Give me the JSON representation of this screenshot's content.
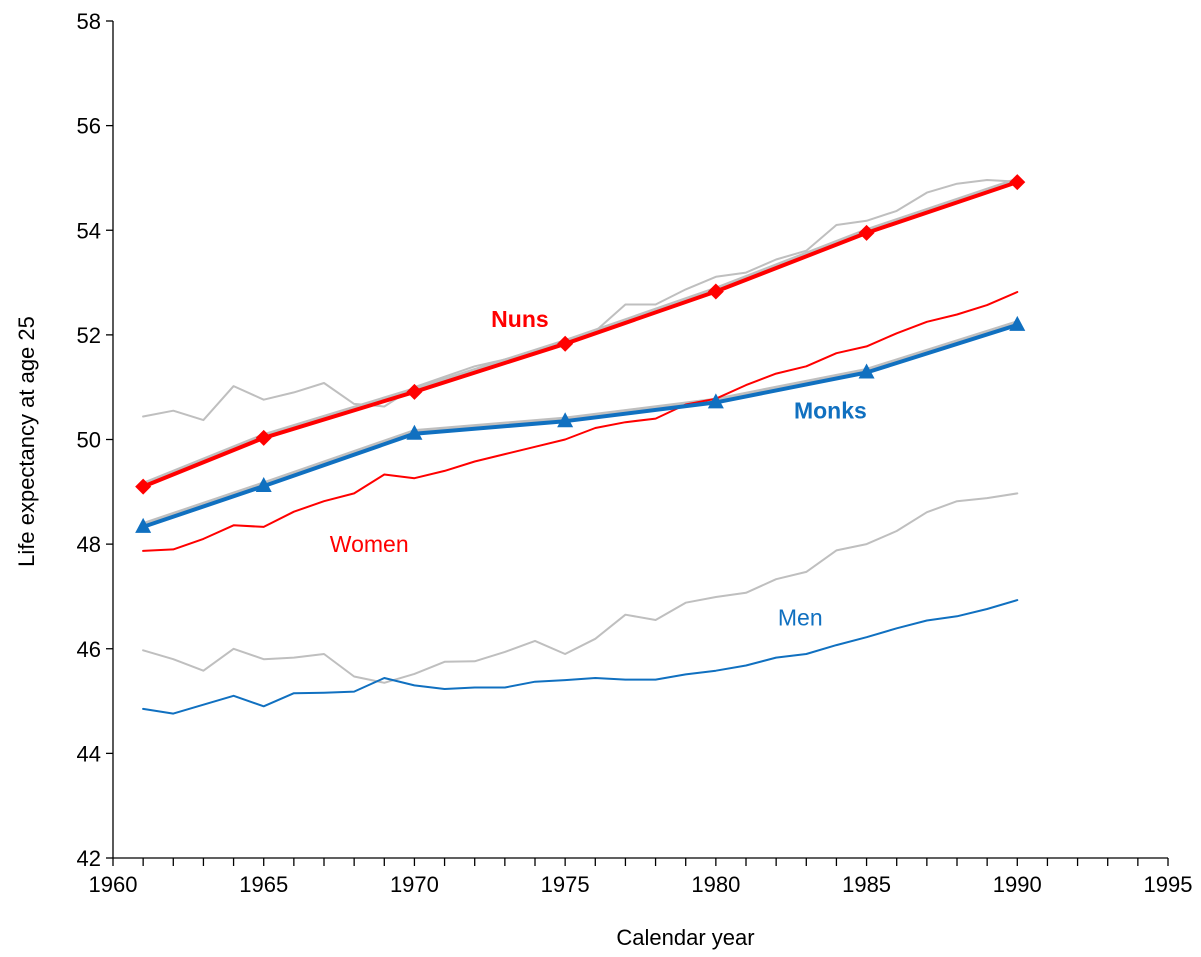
{
  "chart_data": {
    "type": "line",
    "title": "",
    "xlabel": "Calendar year",
    "ylabel": "Life expectancy at age 25",
    "xlim": [
      1960,
      1995
    ],
    "ylim": [
      42,
      58
    ],
    "x_ticks": [
      1960,
      1965,
      1970,
      1975,
      1980,
      1985,
      1990,
      1995
    ],
    "y_ticks": [
      42,
      44,
      46,
      48,
      50,
      52,
      54,
      56,
      58
    ],
    "x_tick_labels": [
      "1960",
      "1965",
      "1970",
      "1975",
      "1980",
      "1985",
      "1990",
      "1995"
    ],
    "y_tick_labels": [
      "42",
      "44",
      "46",
      "48",
      "50",
      "52",
      "54",
      "56",
      "58"
    ],
    "grid": false,
    "legend": "none",
    "colors": {
      "red": "#ff0000",
      "blue": "#1070c0",
      "gray": "#bfbfbf"
    },
    "series": [
      {
        "name": "Women",
        "color": "#ff0000",
        "x": [
          1961,
          1962,
          1963,
          1964,
          1965,
          1966,
          1967,
          1968,
          1969,
          1970,
          1971,
          1972,
          1973,
          1974,
          1975,
          1976,
          1977,
          1978,
          1979,
          1980,
          1981,
          1982,
          1983,
          1984,
          1985,
          1986,
          1987,
          1988,
          1989,
          1990
        ],
        "y": [
          47.87,
          47.9,
          48.1,
          48.36,
          48.33,
          48.62,
          48.82,
          48.97,
          49.33,
          49.26,
          49.4,
          49.58,
          49.72,
          49.86,
          50.0,
          50.22,
          50.33,
          50.4,
          50.67,
          50.78,
          51.04,
          51.26,
          51.4,
          51.65,
          51.78,
          52.03,
          52.25,
          52.39,
          52.57,
          52.82
        ]
      },
      {
        "name": "Men",
        "color": "#1070c0",
        "x": [
          1961,
          1962,
          1963,
          1964,
          1965,
          1966,
          1967,
          1968,
          1969,
          1970,
          1971,
          1972,
          1973,
          1974,
          1975,
          1976,
          1977,
          1978,
          1979,
          1980,
          1981,
          1982,
          1983,
          1984,
          1985,
          1986,
          1987,
          1988,
          1989,
          1990
        ],
        "y": [
          44.85,
          44.76,
          44.93,
          45.1,
          44.9,
          45.15,
          45.16,
          45.18,
          45.44,
          45.3,
          45.23,
          45.26,
          45.26,
          45.37,
          45.4,
          45.44,
          45.41,
          45.41,
          45.51,
          45.58,
          45.68,
          45.83,
          45.9,
          46.07,
          46.22,
          46.39,
          46.54,
          46.62,
          46.76,
          46.93
        ]
      },
      {
        "name": "Nuns",
        "color": "#ff0000",
        "marker": "diamond",
        "x": [
          1961,
          1965,
          1970,
          1975,
          1980,
          1985,
          1990
        ],
        "y": [
          49.1,
          50.03,
          50.91,
          51.83,
          52.83,
          53.95,
          54.92
        ]
      },
      {
        "name": "Monks",
        "color": "#1070c0",
        "marker": "triangle",
        "x": [
          1961,
          1965,
          1970,
          1975,
          1980,
          1985,
          1990
        ],
        "y": [
          48.33,
          49.11,
          50.11,
          50.35,
          50.71,
          51.28,
          52.19
        ]
      },
      {
        "color": "#bfbfbf",
        "x": [
          1961,
          1962,
          1963,
          1964,
          1965,
          1966,
          1967,
          1968,
          1969,
          1970,
          1971,
          1972,
          1973,
          1974,
          1975,
          1976,
          1977,
          1978,
          1979,
          1980,
          1981,
          1982,
          1983,
          1984,
          1985,
          1986,
          1987,
          1988,
          1989,
          1990
        ],
        "y": [
          50.44,
          50.55,
          50.37,
          51.02,
          50.76,
          50.9,
          51.08,
          50.68,
          50.63,
          51.0,
          51.2,
          51.4,
          51.53,
          51.67,
          51.9,
          52.07,
          52.58,
          52.58,
          52.87,
          53.11,
          53.19,
          53.44,
          53.61,
          54.1,
          54.18,
          54.37,
          54.72,
          54.89,
          54.96,
          54.93
        ]
      },
      {
        "color": "#bfbfbf",
        "x": [
          1961,
          1962,
          1963,
          1964,
          1965,
          1966,
          1967,
          1968,
          1969,
          1970,
          1971,
          1972,
          1973,
          1974,
          1975,
          1976,
          1977,
          1978,
          1979,
          1980,
          1981,
          1982,
          1983,
          1984,
          1985,
          1986,
          1987,
          1988,
          1989,
          1990
        ],
        "y": [
          45.97,
          45.8,
          45.58,
          46.0,
          45.8,
          45.83,
          45.9,
          45.47,
          45.35,
          45.52,
          45.75,
          45.76,
          45.94,
          46.15,
          45.9,
          46.19,
          46.65,
          46.55,
          46.88,
          46.99,
          47.07,
          47.33,
          47.47,
          47.88,
          48.0,
          48.25,
          48.61,
          48.82,
          48.88,
          48.97
        ]
      },
      {
        "color": "#bfbfbf",
        "x": [
          1961,
          1965,
          1970,
          1975,
          1980,
          1985,
          1990
        ],
        "y": [
          49.15,
          50.08,
          50.96,
          51.88,
          52.88,
          54.0,
          54.97
        ]
      },
      {
        "color": "#bfbfbf",
        "x": [
          1961,
          1965,
          1970,
          1975,
          1980,
          1985,
          1990
        ],
        "y": [
          48.38,
          49.16,
          50.16,
          50.4,
          50.76,
          51.33,
          52.24
        ]
      }
    ],
    "annotations": [
      {
        "text": "Nuns",
        "x": 1973.5,
        "y": 52.3,
        "color": "#ff0000",
        "bold": true
      },
      {
        "text": "Monks",
        "x": 1983.8,
        "y": 50.55,
        "color": "#1070c0",
        "bold": true
      },
      {
        "text": "Women",
        "x": 1968.5,
        "y": 48.0,
        "color": "#ff0000",
        "bold": false
      },
      {
        "text": "Men",
        "x": 1982.8,
        "y": 46.6,
        "color": "#1070c0",
        "bold": false
      }
    ]
  }
}
